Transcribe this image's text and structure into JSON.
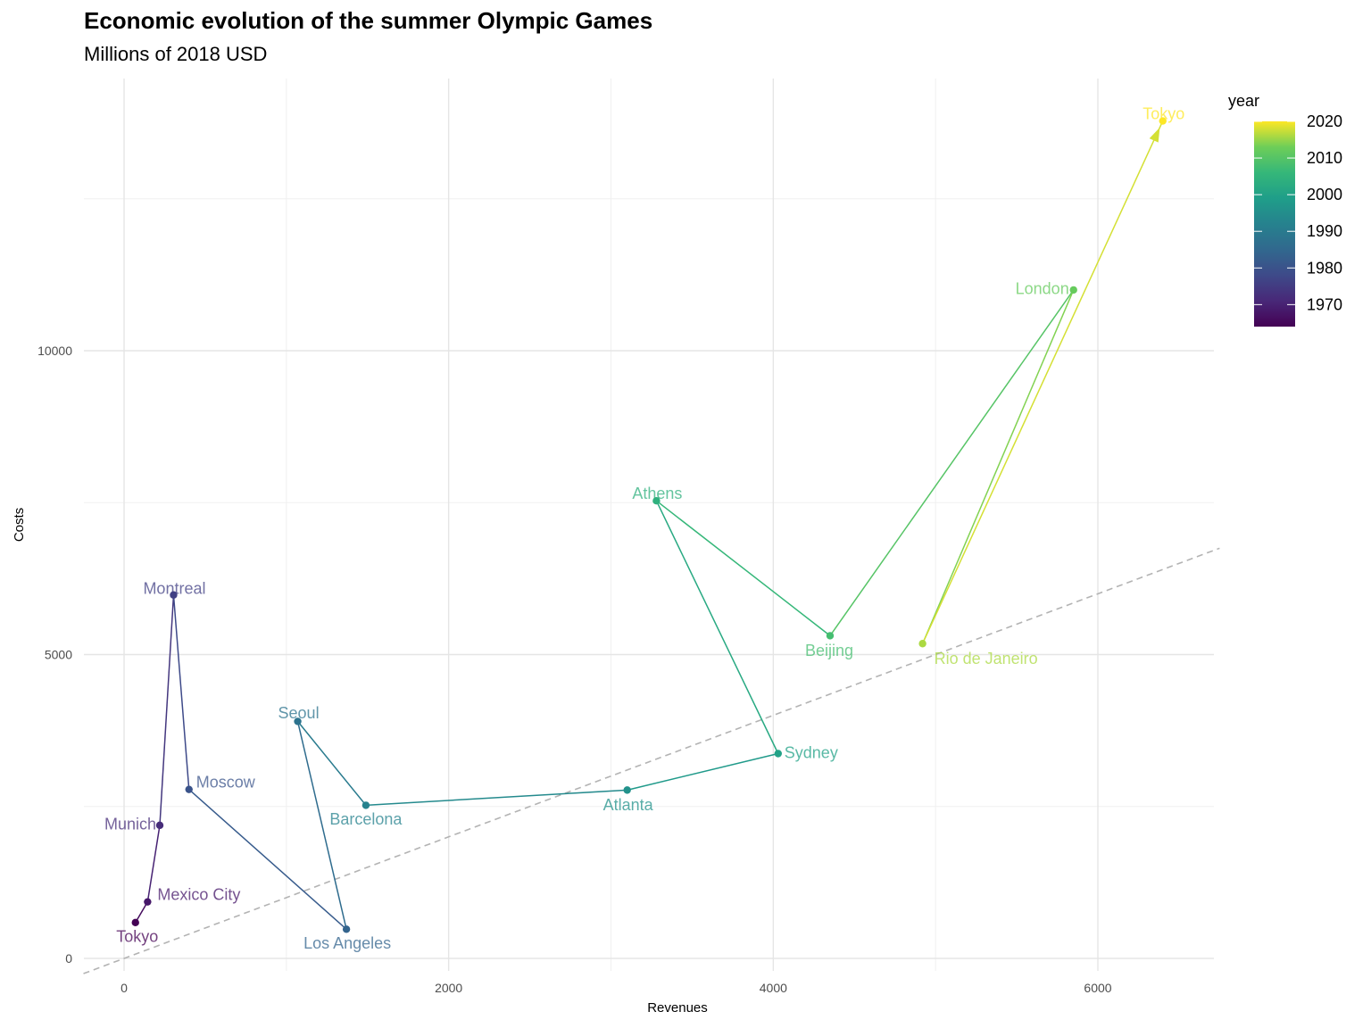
{
  "chart_data": {
    "type": "line",
    "title": "Economic evolution of the summer Olympic Games",
    "subtitle": "Millions of 2018 USD",
    "xlabel": "Revenues",
    "ylabel": "Costs",
    "xlim": [
      -250,
      6750
    ],
    "ylim": [
      -150,
      14500
    ],
    "x_ticks": [
      0,
      2000,
      4000,
      6000
    ],
    "y_ticks": [
      0,
      5000,
      10000
    ],
    "grid": true,
    "reference_line": {
      "style": "dashed",
      "slope": 1,
      "intercept": 0,
      "color": "#b3b3b3"
    },
    "legend": {
      "title": "year",
      "placement": "right",
      "ticks": [
        1970,
        1980,
        1990,
        2000,
        2010,
        2020
      ],
      "range": [
        1964,
        2020
      ]
    },
    "points": [
      {
        "city": "Tokyo",
        "year": 1964,
        "revenue": 70,
        "cost": 590
      },
      {
        "city": "Mexico City",
        "year": 1968,
        "revenue": 145,
        "cost": 930
      },
      {
        "city": "Munich",
        "year": 1972,
        "revenue": 220,
        "cost": 2190
      },
      {
        "city": "Montreal",
        "year": 1976,
        "revenue": 305,
        "cost": 5980
      },
      {
        "city": "Moscow",
        "year": 1980,
        "revenue": 400,
        "cost": 2780
      },
      {
        "city": "Los Angeles",
        "year": 1984,
        "revenue": 1370,
        "cost": 480
      },
      {
        "city": "Seoul",
        "year": 1988,
        "revenue": 1070,
        "cost": 3900
      },
      {
        "city": "Barcelona",
        "year": 1992,
        "revenue": 1490,
        "cost": 2520
      },
      {
        "city": "Atlanta",
        "year": 1996,
        "revenue": 3100,
        "cost": 2770
      },
      {
        "city": "Sydney",
        "year": 2000,
        "revenue": 4030,
        "cost": 3370
      },
      {
        "city": "Athens",
        "year": 2004,
        "revenue": 3280,
        "cost": 7530
      },
      {
        "city": "Beijing",
        "year": 2008,
        "revenue": 4350,
        "cost": 5310
      },
      {
        "city": "London",
        "year": 2012,
        "revenue": 5850,
        "cost": 11000
      },
      {
        "city": "Rio de Janeiro",
        "year": 2016,
        "revenue": 4920,
        "cost": 5180
      },
      {
        "city": "Tokyo",
        "year": 2020,
        "revenue": 6400,
        "cost": 13780
      }
    ]
  }
}
